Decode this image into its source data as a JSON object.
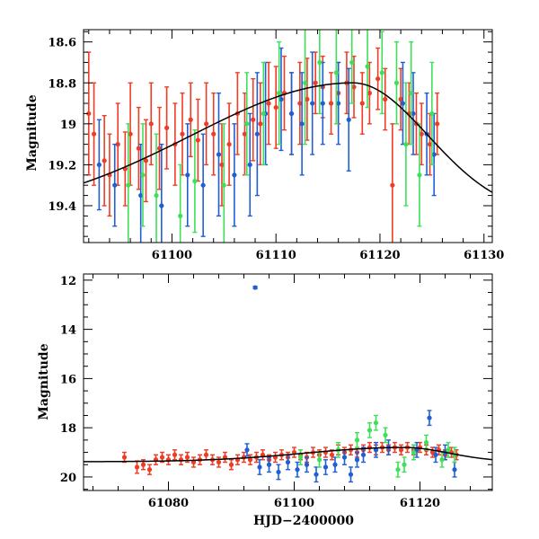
{
  "chart_data": [
    {
      "type": "scatter",
      "panel": "top",
      "title": "",
      "xlabel": "",
      "ylabel": "Magnitude",
      "xlim": [
        61091.5,
        61130.8
      ],
      "ylim": [
        19.58,
        18.54
      ],
      "y_inverted": true,
      "xticks": [
        61100,
        61110,
        61120,
        61130
      ],
      "yticks": [
        18.6,
        18.8,
        19,
        19.2,
        19.4
      ],
      "xtick_labels": [
        "61100",
        "61110",
        "61120",
        "61130"
      ],
      "ytick_labels": [
        "18.6",
        "18.8",
        "19",
        "19.2",
        "19.4"
      ],
      "fit_model": {
        "name": "model-curve",
        "peak_x": 61117.4,
        "peak_mag": 18.8,
        "base_mag": 19.45,
        "rise_sigma": 15.5,
        "fall_sigma": 7.2
      },
      "series": [
        {
          "name": "red",
          "color": "#f03c24",
          "points": [
            [
              61092.0,
              18.95,
              0.3
            ],
            [
              61092.5,
              19.05,
              0.25
            ],
            [
              61093.5,
              19.18,
              0.22
            ],
            [
              61094.0,
              19.25,
              0.2
            ],
            [
              61094.8,
              19.1,
              0.2
            ],
            [
              61095.5,
              19.22,
              0.18
            ],
            [
              61096.0,
              19.05,
              0.25
            ],
            [
              61096.8,
              19.12,
              0.2
            ],
            [
              61097.5,
              19.18,
              0.2
            ],
            [
              61098.0,
              19.0,
              0.2
            ],
            [
              61098.8,
              19.12,
              0.2
            ],
            [
              61099.5,
              19.02,
              0.2
            ],
            [
              61100.3,
              19.1,
              0.2
            ],
            [
              61101.0,
              19.05,
              0.2
            ],
            [
              61101.8,
              18.98,
              0.18
            ],
            [
              61102.5,
              19.08,
              0.2
            ],
            [
              61103.3,
              19.0,
              0.2
            ],
            [
              61104.0,
              19.05,
              0.2
            ],
            [
              61104.8,
              19.2,
              0.2
            ],
            [
              61105.5,
              19.1,
              0.2
            ],
            [
              61106.3,
              18.95,
              0.2
            ],
            [
              61107.0,
              19.05,
              0.2
            ],
            [
              61107.8,
              18.98,
              0.2
            ],
            [
              61108.5,
              19.0,
              0.2
            ],
            [
              61109.3,
              18.9,
              0.2
            ],
            [
              61110.0,
              18.92,
              0.2
            ],
            [
              61110.8,
              18.85,
              0.18
            ],
            [
              61111.5,
              18.95,
              0.2
            ],
            [
              61112.3,
              18.9,
              0.2
            ],
            [
              61113.0,
              18.88,
              0.2
            ],
            [
              61113.8,
              18.8,
              0.15
            ],
            [
              61114.5,
              18.82,
              0.15
            ],
            [
              61115.3,
              18.9,
              0.15
            ],
            [
              61116.0,
              18.85,
              0.15
            ],
            [
              61116.8,
              18.8,
              0.15
            ],
            [
              61117.5,
              18.82,
              0.15
            ],
            [
              61118.3,
              18.9,
              0.15
            ],
            [
              61119.0,
              18.85,
              0.15
            ],
            [
              61119.8,
              18.78,
              0.15
            ],
            [
              61120.5,
              18.88,
              0.15
            ],
            [
              61121.2,
              19.3,
              0.3
            ],
            [
              61122.0,
              18.88,
              0.15
            ],
            [
              61122.8,
              18.95,
              0.15
            ],
            [
              61123.5,
              19.0,
              0.15
            ],
            [
              61124.0,
              19.05,
              0.15
            ],
            [
              61124.8,
              19.1,
              0.15
            ],
            [
              61125.5,
              19.0,
              0.15
            ]
          ]
        },
        {
          "name": "blue",
          "color": "#1f5fd6",
          "points": [
            [
              61093.0,
              19.2,
              0.22
            ],
            [
              61094.5,
              19.3,
              0.2
            ],
            [
              61097.0,
              19.35,
              0.25
            ],
            [
              61099.0,
              19.4,
              0.3
            ],
            [
              61101.5,
              19.25,
              0.25
            ],
            [
              61103.0,
              19.3,
              0.25
            ],
            [
              61104.5,
              19.15,
              0.3
            ],
            [
              61106.0,
              19.25,
              0.25
            ],
            [
              61107.5,
              19.2,
              0.25
            ],
            [
              61108.2,
              19.05,
              0.3
            ],
            [
              61109.0,
              18.95,
              0.25
            ],
            [
              61110.5,
              18.88,
              0.25
            ],
            [
              61111.5,
              18.95,
              0.2
            ],
            [
              61112.5,
              19.0,
              0.25
            ],
            [
              61113.5,
              18.9,
              0.25
            ],
            [
              61114.5,
              18.9,
              0.2
            ],
            [
              61116.0,
              18.9,
              0.2
            ],
            [
              61117.0,
              18.98,
              0.25
            ],
            [
              61122.2,
              18.9,
              0.2
            ],
            [
              61123.2,
              18.95,
              0.2
            ],
            [
              61124.5,
              19.05,
              0.2
            ],
            [
              61125.2,
              19.15,
              0.2
            ]
          ]
        },
        {
          "name": "green",
          "color": "#3ee05a",
          "points": [
            [
              61095.8,
              19.3,
              0.3
            ],
            [
              61097.2,
              19.25,
              0.25
            ],
            [
              61098.5,
              19.35,
              0.3
            ],
            [
              61100.8,
              19.45,
              0.25
            ],
            [
              61102.2,
              19.28,
              0.25
            ],
            [
              61105.0,
              19.3,
              0.3
            ],
            [
              61107.2,
              19.0,
              0.25
            ],
            [
              61108.8,
              18.95,
              0.25
            ],
            [
              61110.3,
              18.85,
              0.25
            ],
            [
              61112.8,
              18.8,
              0.3
            ],
            [
              61114.2,
              18.7,
              0.25
            ],
            [
              61115.8,
              18.75,
              0.25
            ],
            [
              61117.3,
              18.7,
              0.2
            ],
            [
              61118.8,
              18.72,
              0.2
            ],
            [
              61120.2,
              18.75,
              0.2
            ],
            [
              61121.6,
              18.8,
              0.2
            ],
            [
              61122.5,
              19.1,
              0.3
            ],
            [
              61123.0,
              18.85,
              0.25
            ],
            [
              61123.8,
              19.25,
              0.25
            ],
            [
              61125.0,
              18.95,
              0.25
            ]
          ]
        }
      ]
    },
    {
      "type": "scatter",
      "panel": "bottom",
      "title": "",
      "xlabel": "HJD−2400000",
      "ylabel": "Magnitude",
      "xlim": [
        61066.5,
        61131.5
      ],
      "ylim": [
        20.55,
        11.75
      ],
      "y_inverted": true,
      "xticks": [
        61080,
        61100,
        61120
      ],
      "yticks": [
        12,
        14,
        16,
        18,
        20
      ],
      "xtick_labels": [
        "61080",
        "61100",
        "61120"
      ],
      "ytick_labels": [
        "12",
        "14",
        "16",
        "18",
        "20"
      ],
      "fit_model": {
        "name": "model-curve",
        "peak_x": 61117.4,
        "peak_mag": 18.8,
        "base_mag": 19.38,
        "rise_sigma": 15.5,
        "fall_sigma": 7.2
      },
      "series": [
        {
          "name": "red",
          "color": "#f03c24",
          "points": [
            [
              61073.0,
              19.2,
              0.2
            ],
            [
              61075.0,
              19.6,
              0.25
            ],
            [
              61076.0,
              19.5,
              0.2
            ],
            [
              61077.0,
              19.7,
              0.2
            ],
            [
              61078.0,
              19.3,
              0.2
            ],
            [
              61079.0,
              19.2,
              0.2
            ],
            [
              61080.0,
              19.3,
              0.2
            ],
            [
              61081.0,
              19.1,
              0.2
            ],
            [
              61082.0,
              19.3,
              0.2
            ],
            [
              61083.0,
              19.2,
              0.2
            ],
            [
              61084.0,
              19.4,
              0.2
            ],
            [
              61085.0,
              19.3,
              0.2
            ],
            [
              61086.0,
              19.1,
              0.2
            ],
            [
              61087.0,
              19.3,
              0.2
            ],
            [
              61088.0,
              19.4,
              0.2
            ],
            [
              61089.0,
              19.2,
              0.2
            ],
            [
              61090.0,
              19.5,
              0.2
            ],
            [
              61091.0,
              19.3,
              0.2
            ],
            [
              61092.0,
              19.2,
              0.2
            ],
            [
              61093.0,
              19.3,
              0.2
            ],
            [
              61094.0,
              19.2,
              0.2
            ],
            [
              61095.0,
              19.1,
              0.2
            ],
            [
              61096.0,
              19.3,
              0.2
            ],
            [
              61097.0,
              19.2,
              0.2
            ],
            [
              61098.0,
              19.1,
              0.2
            ],
            [
              61099.0,
              19.2,
              0.2
            ],
            [
              61100.0,
              19.0,
              0.2
            ],
            [
              61101.0,
              19.1,
              0.2
            ],
            [
              61102.0,
              19.2,
              0.2
            ],
            [
              61103.0,
              19.0,
              0.2
            ],
            [
              61104.0,
              19.1,
              0.2
            ],
            [
              61105.0,
              19.0,
              0.2
            ],
            [
              61106.0,
              19.1,
              0.2
            ],
            [
              61107.0,
              18.9,
              0.2
            ],
            [
              61108.0,
              19.0,
              0.2
            ],
            [
              61109.0,
              18.9,
              0.2
            ],
            [
              61110.0,
              19.0,
              0.2
            ],
            [
              61111.0,
              18.9,
              0.2
            ],
            [
              61112.0,
              18.8,
              0.2
            ],
            [
              61113.0,
              18.9,
              0.2
            ],
            [
              61114.0,
              18.8,
              0.2
            ],
            [
              61115.0,
              18.9,
              0.2
            ],
            [
              61116.0,
              18.8,
              0.2
            ],
            [
              61117.0,
              18.9,
              0.2
            ],
            [
              61118.0,
              18.8,
              0.2
            ],
            [
              61119.0,
              18.9,
              0.2
            ],
            [
              61120.0,
              18.8,
              0.2
            ],
            [
              61121.0,
              18.9,
              0.2
            ],
            [
              61122.0,
              19.0,
              0.2
            ],
            [
              61123.0,
              18.9,
              0.2
            ],
            [
              61124.0,
              19.1,
              0.2
            ],
            [
              61125.0,
              19.0,
              0.2
            ],
            [
              61125.8,
              19.1,
              0.2
            ]
          ]
        },
        {
          "name": "blue",
          "color": "#1f5fd6",
          "points": [
            [
              61093.8,
              12.3,
              0.05
            ],
            [
              61092.5,
              18.9,
              0.25
            ],
            [
              61094.5,
              19.6,
              0.3
            ],
            [
              61096.0,
              19.5,
              0.3
            ],
            [
              61097.5,
              19.8,
              0.3
            ],
            [
              61099.0,
              19.4,
              0.3
            ],
            [
              61100.5,
              19.7,
              0.3
            ],
            [
              61102.0,
              19.5,
              0.3
            ],
            [
              61103.5,
              19.9,
              0.3
            ],
            [
              61105.0,
              19.6,
              0.3
            ],
            [
              61106.5,
              19.5,
              0.3
            ],
            [
              61108.0,
              19.2,
              0.3
            ],
            [
              61109.0,
              19.9,
              0.3
            ],
            [
              61110.0,
              19.3,
              0.3
            ],
            [
              61111.0,
              19.1,
              0.3
            ],
            [
              61113.0,
              18.9,
              0.3
            ],
            [
              61115.0,
              18.8,
              0.3
            ],
            [
              61119.5,
              18.9,
              0.3
            ],
            [
              61121.5,
              17.6,
              0.3
            ],
            [
              61122.5,
              19.1,
              0.3
            ],
            [
              61124.0,
              19.0,
              0.3
            ],
            [
              61125.5,
              19.7,
              0.3
            ]
          ]
        },
        {
          "name": "green",
          "color": "#3ee05a",
          "points": [
            [
              61101.0,
              19.2,
              0.3
            ],
            [
              61104.0,
              19.3,
              0.3
            ],
            [
              61107.0,
              18.9,
              0.3
            ],
            [
              61110.0,
              18.5,
              0.3
            ],
            [
              61112.0,
              18.1,
              0.3
            ],
            [
              61113.0,
              17.8,
              0.3
            ],
            [
              61114.5,
              18.3,
              0.3
            ],
            [
              61116.5,
              19.7,
              0.3
            ],
            [
              61117.5,
              19.5,
              0.3
            ],
            [
              61119.0,
              19.0,
              0.3
            ],
            [
              61121.0,
              18.6,
              0.3
            ],
            [
              61123.5,
              19.3,
              0.3
            ],
            [
              61124.5,
              18.9,
              0.3
            ],
            [
              61125.5,
              19.1,
              0.3
            ]
          ]
        }
      ]
    }
  ]
}
